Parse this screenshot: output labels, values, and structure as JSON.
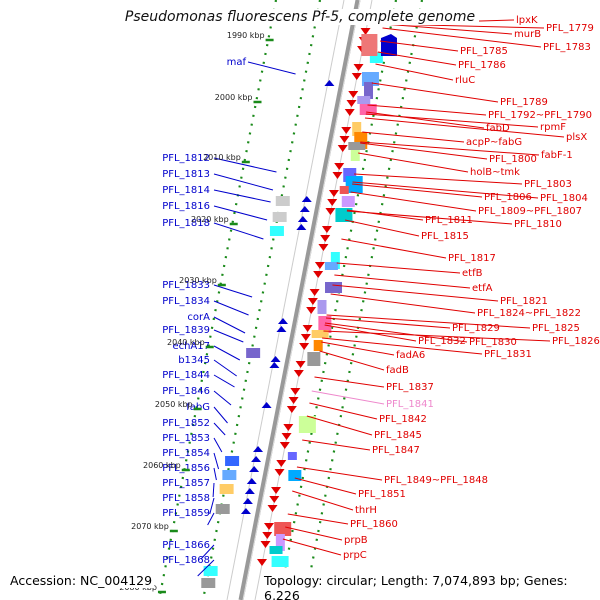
{
  "title": "Pseudomonas fluorescens Pf-5, complete genome",
  "footer": {
    "accession": "Accession: NC_004129",
    "topology": "Topology: circular; Length: 7,074,893 bp; Genes: 6,226"
  },
  "colors": {
    "forward": "#e00000",
    "reverse": "#0000cc",
    "pseudo": "#ee88cc",
    "backbone": "#999999",
    "tick": "#1a8a1a"
  },
  "kbp_ticks": [
    "1990 kbp",
    "2000 kbp",
    "2010 kbp",
    "2020 kbp",
    "2030 kbp",
    "2040 kbp",
    "2050 kbp",
    "2060 kbp",
    "2070 kbp",
    "2080 kbp"
  ],
  "left_genes": [
    "maf",
    "PFL_1812",
    "PFL_1813",
    "PFL_1814",
    "PFL_1816",
    "PFL_1818",
    "PFL_1833",
    "PFL_1834",
    "corA",
    "PFL_1839",
    "echA17",
    "b1345",
    "PFL_1844",
    "PFL_1846",
    "fabG",
    "PFL_1852",
    "PFL_1853",
    "PFL_1854",
    "PFL_1856",
    "PFL_1857",
    "PFL_1858",
    "PFL_1859",
    "PFL_1866",
    "PFL_1868"
  ],
  "right_genes": [
    "lpxK",
    "murB",
    "PFL_1779",
    "PFL_1783",
    "PFL_1785",
    "PFL_1786",
    "rluC",
    "PFL_1789",
    "PFL_1792~PFL_1790",
    "rpmF",
    "fabD",
    "plsX",
    "acpP~fabG",
    "fabF-1",
    "PFL_1800",
    "holB~tmk",
    "PFL_1803",
    "PFL_1806",
    "PFL_1804",
    "PFL_1809~PFL_1807",
    "PFL_1811",
    "PFL_1810",
    "PFL_1815",
    "PFL_1817",
    "etfB",
    "etfA",
    "PFL_1821",
    "PFL_1824~PFL_1822",
    "PFL_1829",
    "PFL_1825",
    "PFL_1832",
    "PFL_1830",
    "PFL_1826",
    "fadA6",
    "PFL_1831",
    "fadB",
    "PFL_1837",
    "PFL_1841",
    "PFL_1842",
    "PFL_1845",
    "PFL_1847",
    "PFL_1849~PFL_1848",
    "PFL_1851",
    "thrH",
    "PFL_1860",
    "prpB",
    "prpC"
  ]
}
